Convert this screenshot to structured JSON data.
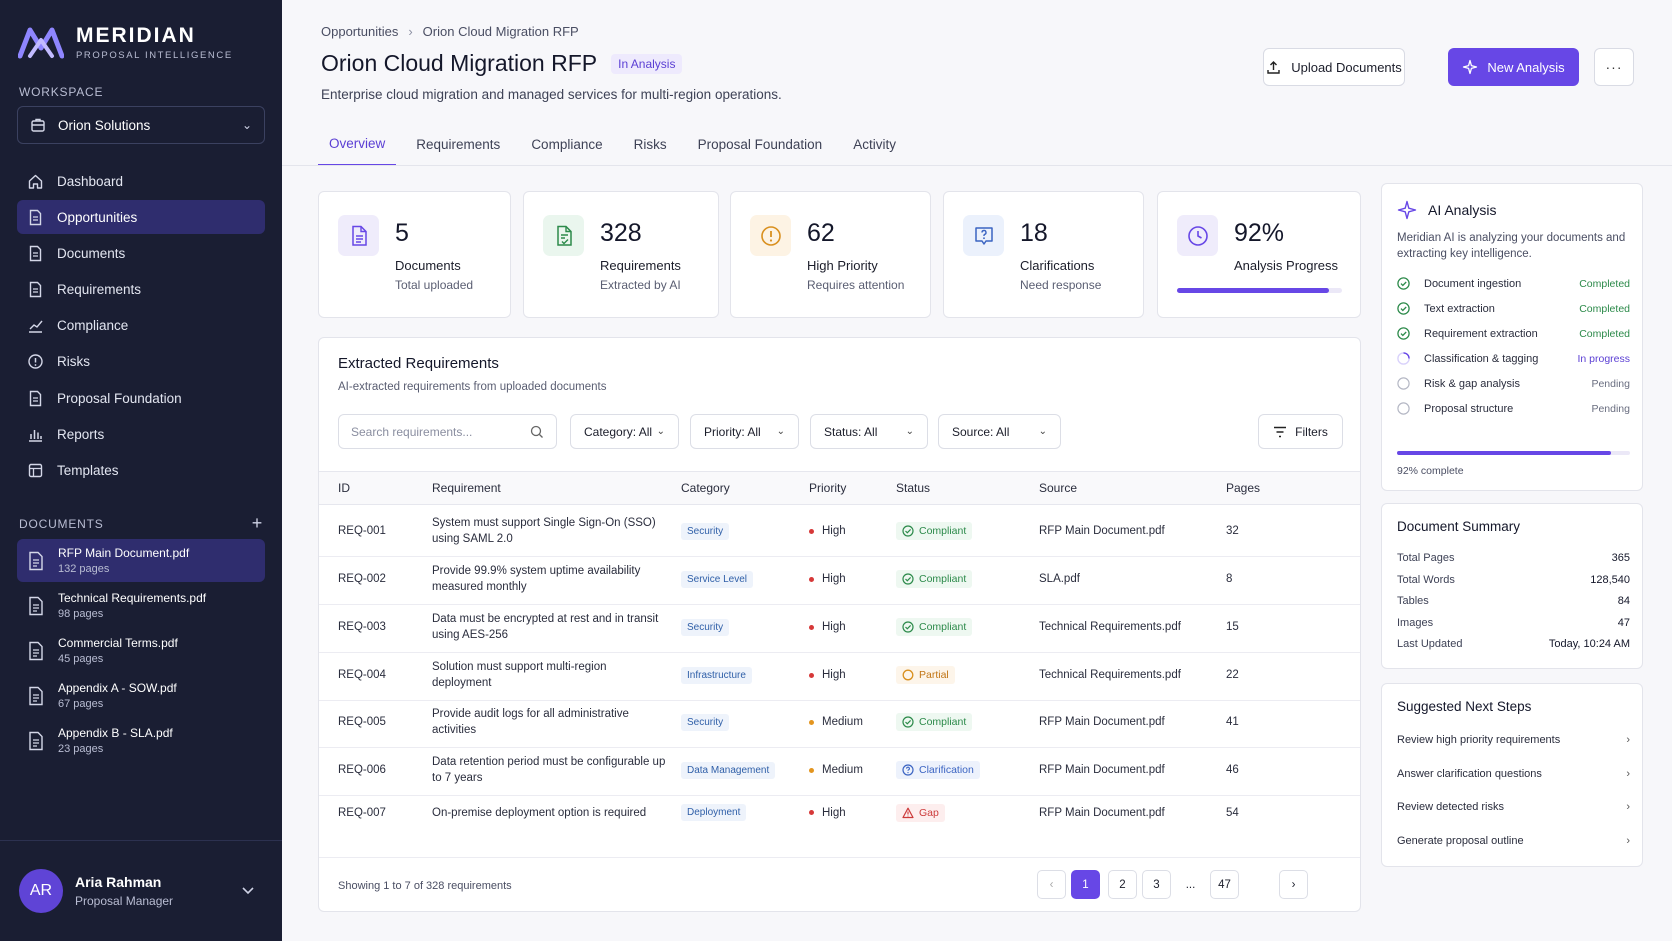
{
  "app": {
    "name": "MERIDIAN",
    "tagline": "PROPOSAL INTELLIGENCE"
  },
  "colors": {
    "accent": "#6747e6",
    "sidebar_bg": "#1a1e33",
    "success": "#2c8a4a",
    "warning": "#c27616",
    "danger": "#cc3a3a"
  },
  "sidebar": {
    "workspace_label": "WORKSPACE",
    "workspace_value": "Orion Solutions",
    "nav": [
      {
        "label": "Dashboard",
        "icon": "home-icon"
      },
      {
        "label": "Opportunities",
        "icon": "document-icon",
        "active": true
      },
      {
        "label": "Documents",
        "icon": "document-icon"
      },
      {
        "label": "Requirements",
        "icon": "document-icon"
      },
      {
        "label": "Compliance",
        "icon": "chart-line-icon"
      },
      {
        "label": "Risks",
        "icon": "alert-circle-icon"
      },
      {
        "label": "Proposal Foundation",
        "icon": "document-icon"
      },
      {
        "label": "Reports",
        "icon": "bar-chart-icon"
      },
      {
        "label": "Templates",
        "icon": "template-icon"
      }
    ],
    "documents_label": "DOCUMENTS",
    "documents": [
      {
        "name": "RFP Main Document.pdf",
        "pages": "132 pages",
        "active": true
      },
      {
        "name": "Technical Requirements.pdf",
        "pages": "98 pages"
      },
      {
        "name": "Commercial Terms.pdf",
        "pages": "45 pages"
      },
      {
        "name": "Appendix A - SOW.pdf",
        "pages": "67 pages"
      },
      {
        "name": "Appendix B - SLA.pdf",
        "pages": "23 pages"
      }
    ],
    "user": {
      "initials": "AR",
      "name": "Aria Rahman",
      "role": "Proposal Manager"
    }
  },
  "header": {
    "breadcrumb": [
      "Opportunities",
      "Orion Cloud Migration RFP"
    ],
    "title": "Orion Cloud Migration RFP",
    "badge": "In Analysis",
    "subtitle": "Enterprise cloud migration and managed services for multi-region operations.",
    "upload_label": "Upload Documents",
    "new_label": "New Analysis",
    "more_label": "···"
  },
  "tabs": [
    "Overview",
    "Requirements",
    "Compliance",
    "Risks",
    "Proposal Foundation",
    "Activity"
  ],
  "stats": [
    {
      "value": "5",
      "label": "Documents",
      "sub": "Total uploaded",
      "icon": "document-icon"
    },
    {
      "value": "328",
      "label": "Requirements",
      "sub": "Extracted by AI",
      "icon": "document-check-icon"
    },
    {
      "value": "62",
      "label": "High Priority",
      "sub": "Requires attention",
      "icon": "alert-circle-icon"
    },
    {
      "value": "18",
      "label": "Clarifications",
      "sub": "Need response",
      "icon": "question-icon"
    },
    {
      "value": "92%",
      "label": "Analysis Progress",
      "sub": "",
      "icon": "clock-icon",
      "progress": 0.92
    }
  ],
  "requirements": {
    "title": "Extracted Requirements",
    "subtitle": "AI-extracted requirements from uploaded documents",
    "search_placeholder": "Search requirements...",
    "filters": [
      "Category: All",
      "Priority: All",
      "Status: All",
      "Source: All"
    ],
    "filters_button": "Filters",
    "columns": [
      "ID",
      "Requirement",
      "Category",
      "Priority",
      "Status",
      "Source",
      "Pages"
    ],
    "rows": [
      {
        "id": "REQ-001",
        "req": "System must support Single Sign-On (SSO) using SAML 2.0",
        "cat": "Security",
        "pri": "High",
        "status": "Compliant",
        "source": "RFP Main Document.pdf",
        "pages": "32"
      },
      {
        "id": "REQ-002",
        "req": "Provide 99.9% system uptime availability measured monthly",
        "cat": "Service Level",
        "pri": "High",
        "status": "Compliant",
        "source": "SLA.pdf",
        "pages": "8"
      },
      {
        "id": "REQ-003",
        "req": "Data must be encrypted at rest and in transit using AES-256",
        "cat": "Security",
        "pri": "High",
        "status": "Compliant",
        "source": "Technical Requirements.pdf",
        "pages": "15"
      },
      {
        "id": "REQ-004",
        "req": "Solution must support multi-region deployment",
        "cat": "Infrastructure",
        "pri": "High",
        "status": "Partial",
        "source": "Technical Requirements.pdf",
        "pages": "22"
      },
      {
        "id": "REQ-005",
        "req": "Provide audit logs for all administrative activities",
        "cat": "Security",
        "pri": "Medium",
        "status": "Compliant",
        "source": "RFP Main Document.pdf",
        "pages": "41"
      },
      {
        "id": "REQ-006",
        "req": "Data retention period must be configurable up to 7 years",
        "cat": "Data Management",
        "pri": "Medium",
        "status": "Clarification",
        "source": "RFP Main Document.pdf",
        "pages": "46"
      },
      {
        "id": "REQ-007",
        "req": "On-premise deployment option is required",
        "cat": "Deployment",
        "pri": "High",
        "status": "Gap",
        "source": "RFP Main Document.pdf",
        "pages": "54"
      }
    ],
    "showing": "Showing 1 to 7 of 328 requirements",
    "pages": [
      "1",
      "2",
      "3",
      "...",
      "47"
    ],
    "current_page": "1"
  },
  "ai_analysis": {
    "title": "AI Analysis",
    "desc": "Meridian AI is analyzing your documents and extracting key intelligence.",
    "steps": [
      {
        "label": "Document ingestion",
        "state": "Completed",
        "kind": "done"
      },
      {
        "label": "Text extraction",
        "state": "Completed",
        "kind": "done"
      },
      {
        "label": "Requirement extraction",
        "state": "Completed",
        "kind": "done"
      },
      {
        "label": "Classification & tagging",
        "state": "In progress",
        "kind": "progress"
      },
      {
        "label": "Risk & gap analysis",
        "state": "Pending",
        "kind": "pending"
      },
      {
        "label": "Proposal structure",
        "state": "Pending",
        "kind": "pending"
      }
    ],
    "progress": 0.92,
    "progress_text": "92% complete"
  },
  "doc_summary": {
    "title": "Document Summary",
    "items": [
      {
        "k": "Total Pages",
        "v": "365"
      },
      {
        "k": "Total Words",
        "v": "128,540"
      },
      {
        "k": "Tables",
        "v": "84"
      },
      {
        "k": "Images",
        "v": "47"
      },
      {
        "k": "Last Updated",
        "v": "Today, 10:24 AM"
      }
    ]
  },
  "next_steps": {
    "title": "Suggested Next Steps",
    "items": [
      "Review high priority requirements",
      "Answer clarification questions",
      "Review detected risks",
      "Generate proposal outline"
    ]
  }
}
